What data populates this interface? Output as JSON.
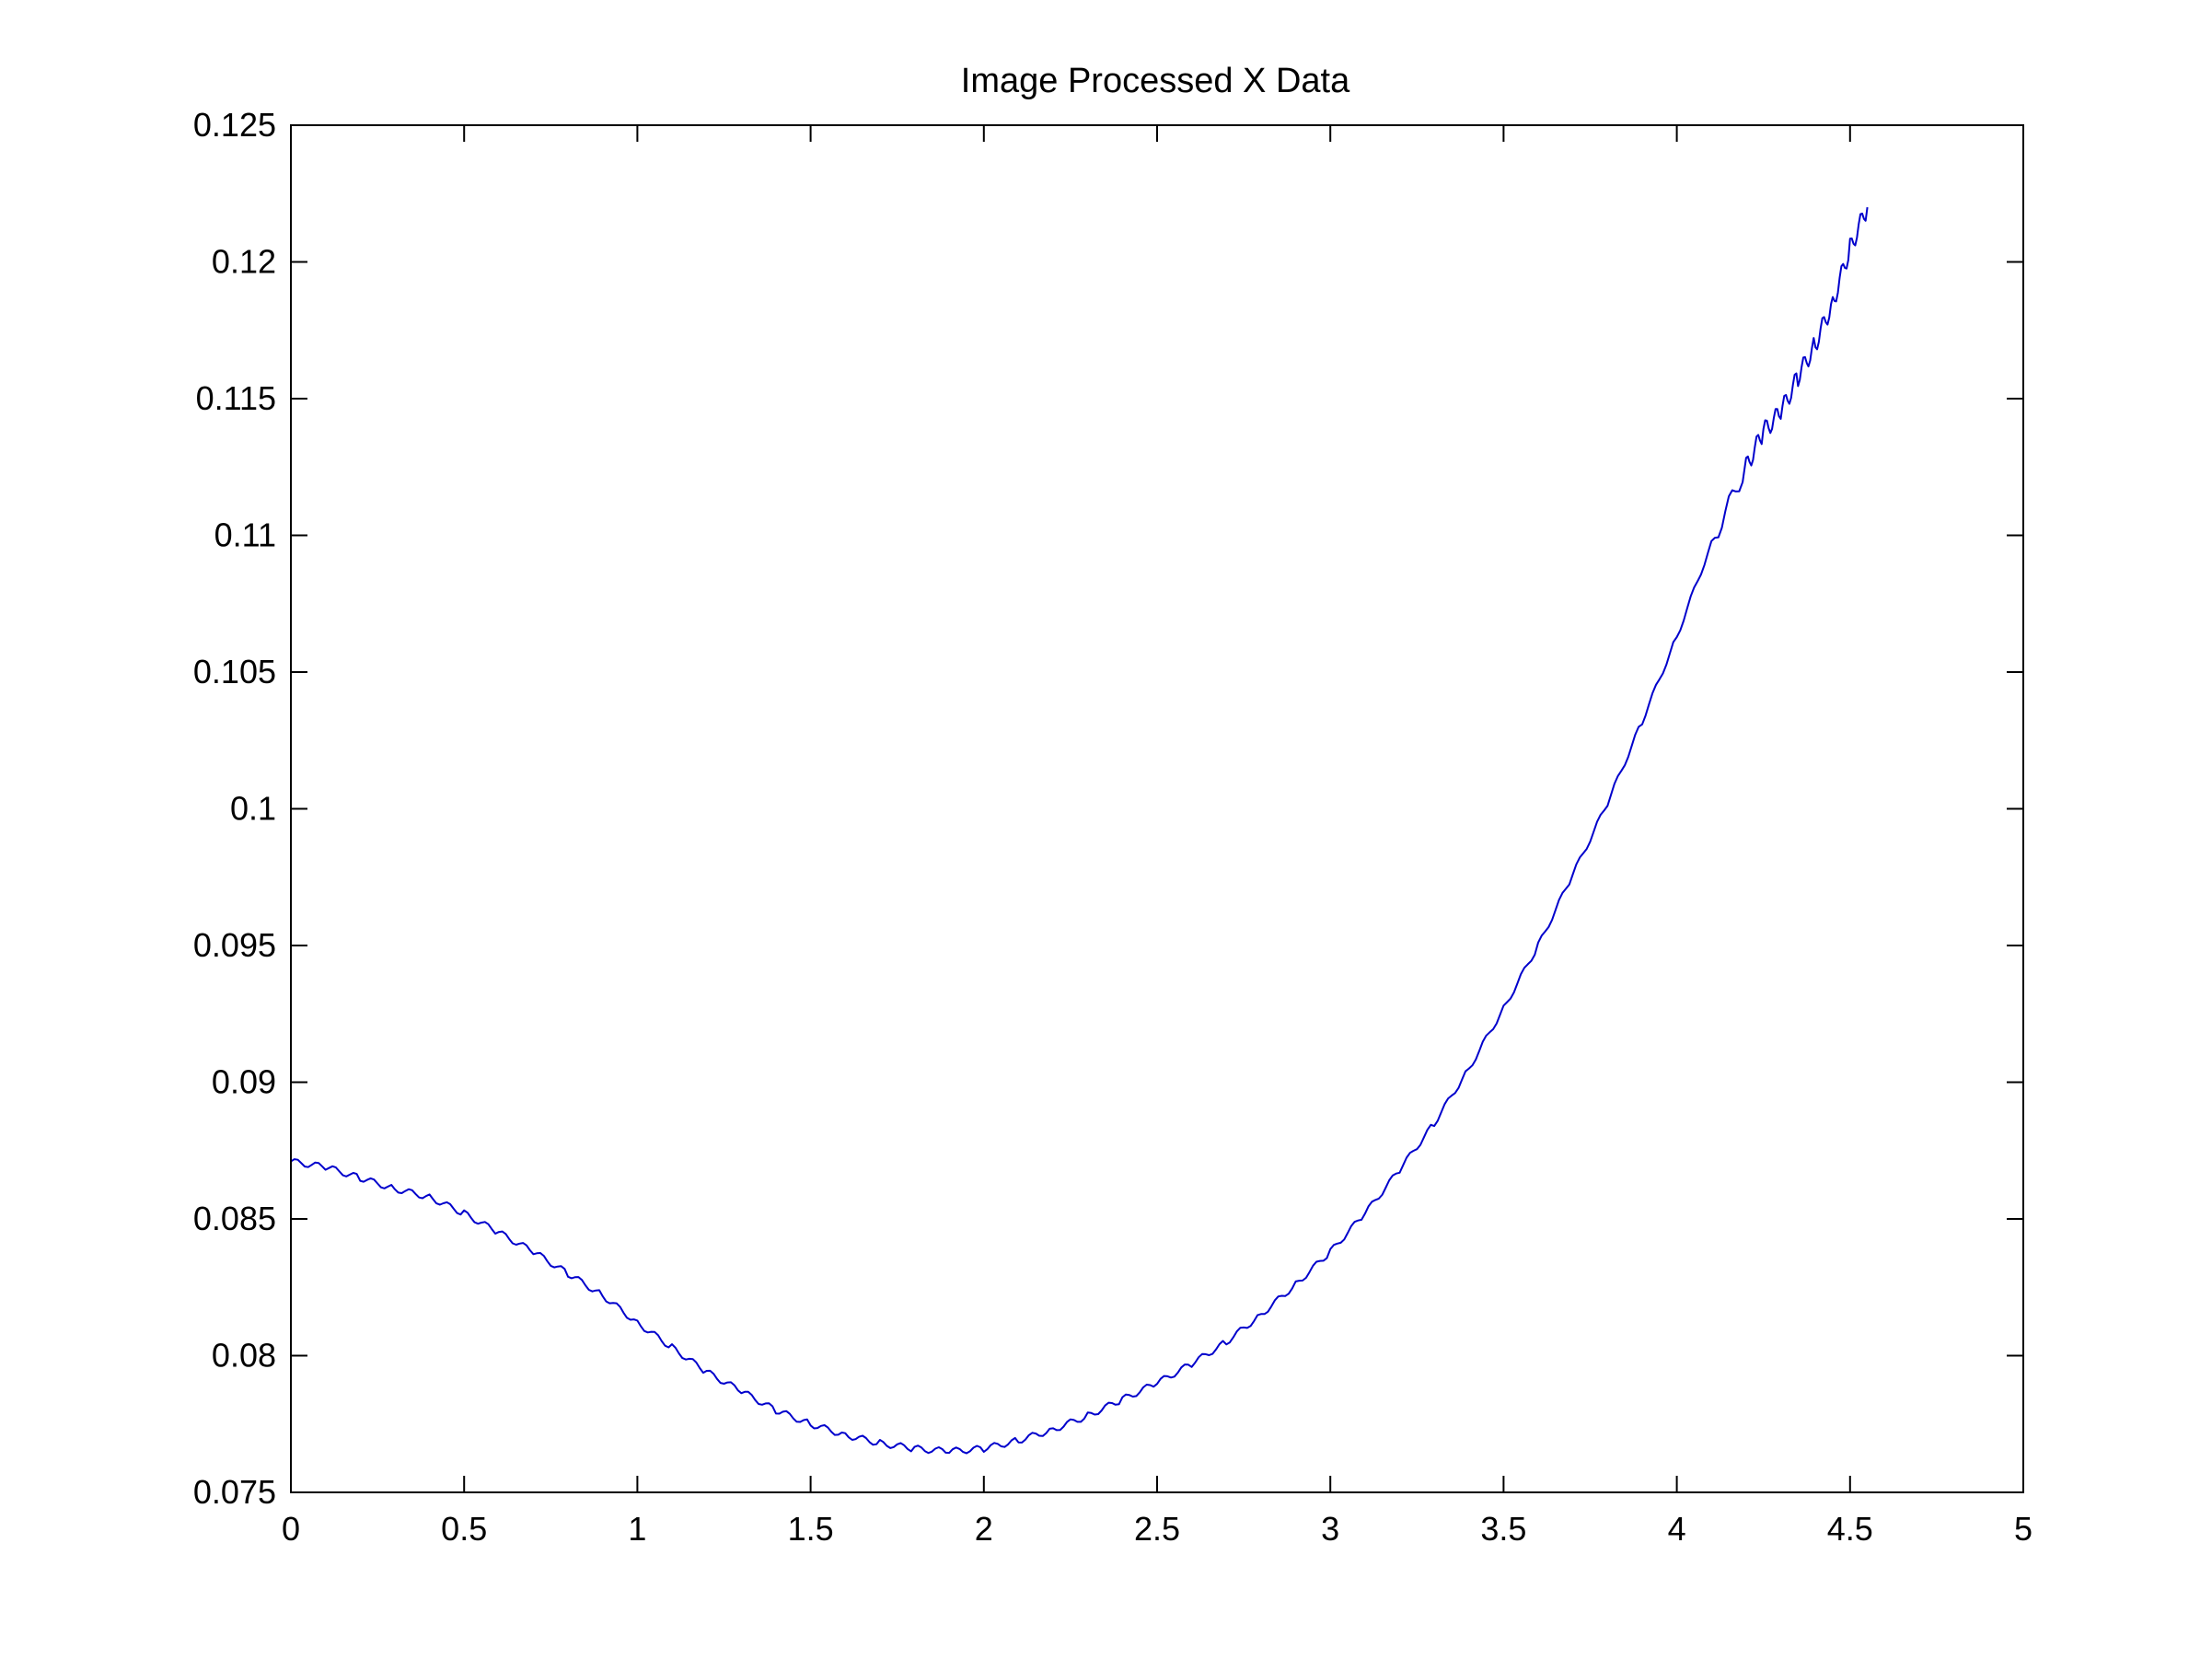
{
  "chart_data": {
    "type": "line",
    "title": "Image Processed X Data",
    "xlabel": "",
    "ylabel": "",
    "xlim": [
      0,
      5
    ],
    "ylim": [
      0.075,
      0.125
    ],
    "x_ticks": [
      0,
      0.5,
      1,
      1.5,
      2,
      2.5,
      3,
      3.5,
      4,
      4.5,
      5
    ],
    "x_tick_labels": [
      "0",
      "0.5",
      "1",
      "1.5",
      "2",
      "2.5",
      "3",
      "3.5",
      "4",
      "4.5",
      "5"
    ],
    "y_ticks": [
      0.075,
      0.08,
      0.085,
      0.09,
      0.095,
      0.1,
      0.105,
      0.11,
      0.115,
      0.12,
      0.125
    ],
    "y_tick_labels": [
      "0.075",
      "0.08",
      "0.085",
      "0.09",
      "0.095",
      "0.1",
      "0.105",
      "0.11",
      "0.115",
      "0.12",
      "0.125"
    ],
    "grid": false,
    "legend": "none",
    "colors": {
      "line": "#0000cc",
      "axes": "#000000",
      "background": "#ffffff"
    },
    "series": [
      {
        "x": [
          0,
          0.1,
          0.2,
          0.3,
          0.4,
          0.5,
          0.6,
          0.7,
          0.8,
          0.9,
          1.0,
          1.1,
          1.2,
          1.3,
          1.4,
          1.5,
          1.6,
          1.7,
          1.8,
          1.9,
          2.0,
          2.1,
          2.2,
          2.3,
          2.4,
          2.5,
          2.6,
          2.7,
          2.8,
          2.9,
          3.0,
          3.1,
          3.2,
          3.3,
          3.4,
          3.5,
          3.6,
          3.7,
          3.8,
          3.9,
          4.0,
          4.1,
          4.2,
          4.25,
          4.3,
          4.35,
          4.4,
          4.45,
          4.5,
          4.55
        ],
        "y": [
          0.0871,
          0.0869,
          0.0865,
          0.0861,
          0.0858,
          0.0852,
          0.0845,
          0.0838,
          0.083,
          0.0822,
          0.0812,
          0.0803,
          0.0794,
          0.0787,
          0.078,
          0.0775,
          0.0771,
          0.0768,
          0.0766,
          0.0765,
          0.0766,
          0.0769,
          0.0773,
          0.0778,
          0.0784,
          0.079,
          0.0797,
          0.0805,
          0.0815,
          0.0826,
          0.0838,
          0.0852,
          0.0868,
          0.0885,
          0.0905,
          0.0927,
          0.095,
          0.0976,
          0.1002,
          0.1032,
          0.1063,
          0.1097,
          0.1125,
          0.1138,
          0.1145,
          0.1158,
          0.117,
          0.1185,
          0.1205,
          0.122
        ]
      }
    ]
  }
}
